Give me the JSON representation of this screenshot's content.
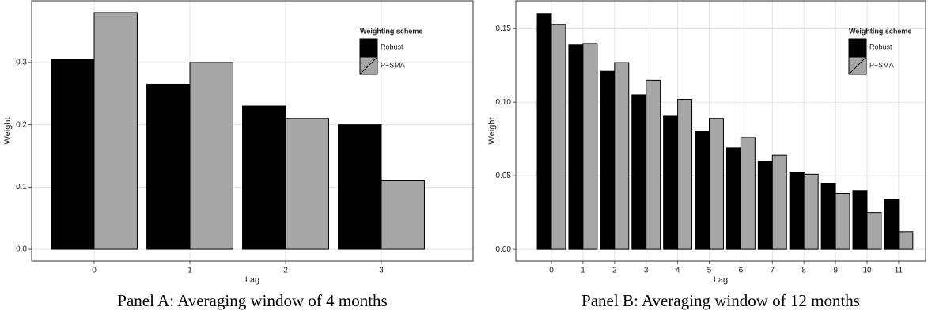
{
  "chart_data": [
    {
      "type": "bar",
      "caption": "Panel A: Averaging window of 4 months",
      "xlabel": "Lag",
      "ylabel": "Weight",
      "legend_title": "Weighting scheme",
      "legend": "top-right",
      "grid": true,
      "categories": [
        "0",
        "1",
        "2",
        "3"
      ],
      "series": [
        {
          "name": "Robust",
          "color": "#000000",
          "values": [
            0.305,
            0.265,
            0.23,
            0.2
          ]
        },
        {
          "name": "P−SMA",
          "color": "#a6a6a6",
          "values": [
            0.38,
            0.3,
            0.21,
            0.11
          ]
        }
      ],
      "ylim": [
        -0.019,
        0.399
      ],
      "yticks": [
        {
          "value": 0,
          "label": "0.0"
        },
        0.1,
        0.2,
        0.3
      ]
    },
    {
      "type": "bar",
      "caption": "Panel B: Averaging window of 12 months",
      "xlabel": "Lag",
      "ylabel": "Weight",
      "legend_title": "Weighting scheme",
      "legend": "top-right",
      "grid": true,
      "categories": [
        "0",
        "1",
        "2",
        "3",
        "4",
        "5",
        "6",
        "7",
        "8",
        "9",
        "10",
        "11"
      ],
      "series": [
        {
          "name": "Robust",
          "color": "#000000",
          "values": [
            0.16,
            0.139,
            0.121,
            0.105,
            0.091,
            0.08,
            0.069,
            0.06,
            0.052,
            0.045,
            0.04,
            0.034
          ]
        },
        {
          "name": "P−SMA",
          "color": "#a6a6a6",
          "values": [
            0.153,
            0.14,
            0.127,
            0.115,
            0.102,
            0.089,
            0.076,
            0.064,
            0.051,
            0.038,
            0.025,
            0.012
          ]
        }
      ],
      "ylim": [
        -0.008,
        0.169
      ],
      "yticks": [
        {
          "value": 0,
          "label": "0.00"
        },
        {
          "value": 0.05,
          "label": "0.05"
        },
        {
          "value": 0.1,
          "label": "0.10"
        },
        {
          "value": 0.15,
          "label": "0.15"
        }
      ]
    }
  ]
}
